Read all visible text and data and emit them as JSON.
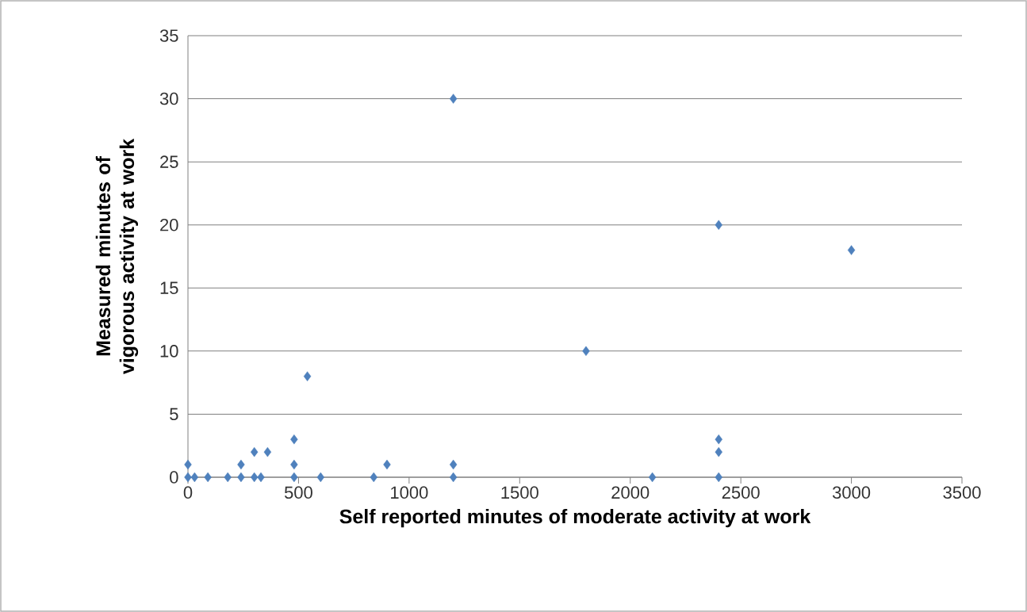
{
  "chart_data": {
    "type": "scatter",
    "xlabel": "Self reported minutes of moderate activity at  work",
    "ylabel": "Measured minutes of vigorous activity at work",
    "x": [
      0,
      0,
      30,
      90,
      180,
      240,
      240,
      300,
      300,
      330,
      360,
      480,
      480,
      480,
      540,
      600,
      840,
      900,
      1200,
      1200,
      1200,
      1800,
      2100,
      2400,
      2400,
      2400,
      2400,
      3000
    ],
    "values": [
      1,
      0,
      0,
      0,
      0,
      1,
      0,
      2,
      0,
      0,
      2,
      3,
      1,
      0,
      8,
      0,
      0,
      1,
      1,
      0,
      30,
      10,
      0,
      20,
      3,
      2,
      0,
      18
    ],
    "color": "#4f81bd",
    "marker": "diamond",
    "grid": "y",
    "xlim": [
      0,
      3500
    ],
    "ylim": [
      0,
      35
    ],
    "xticks": [
      0,
      500,
      1000,
      1500,
      2000,
      2500,
      3000,
      3500
    ],
    "yticks": [
      0,
      5,
      10,
      15,
      20,
      25,
      30,
      35
    ]
  }
}
